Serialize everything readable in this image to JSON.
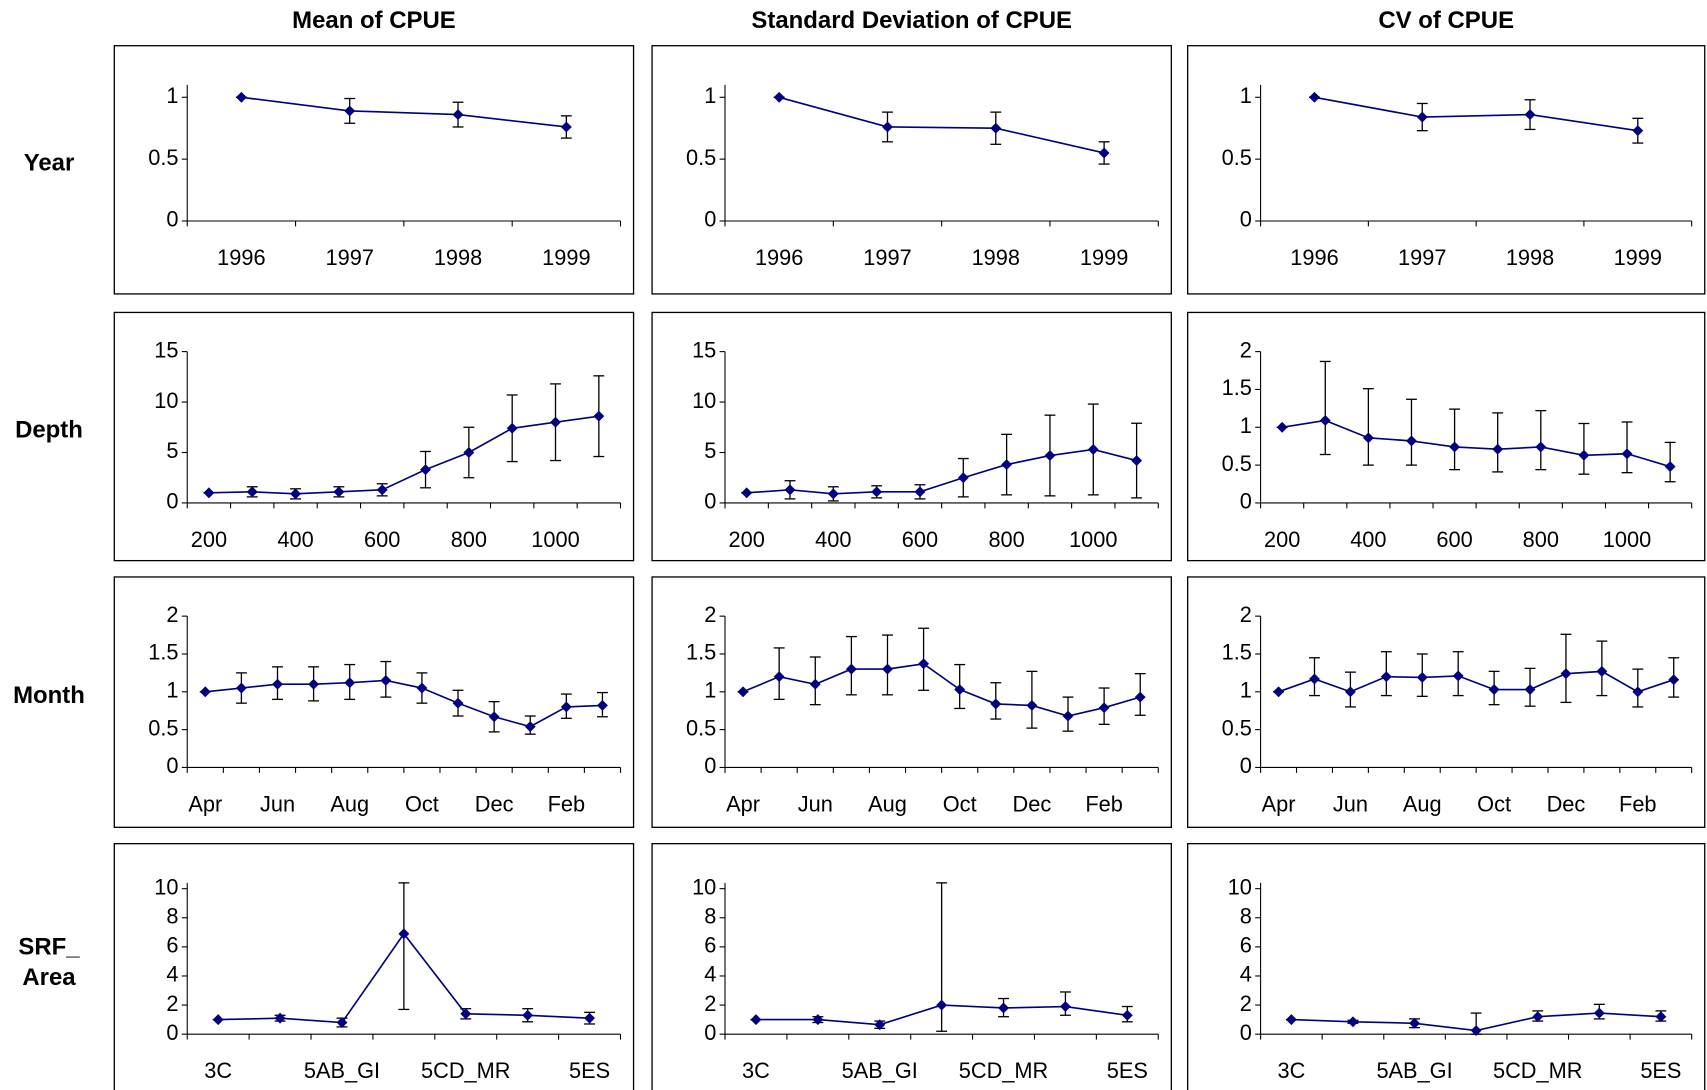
{
  "column_titles": [
    "Mean of CPUE",
    "Standard Deviation of CPUE",
    "CV of CPUE"
  ],
  "row_labels": [
    [
      "Year"
    ],
    [
      "Depth"
    ],
    [
      "Month"
    ],
    [
      "SRF_",
      "Area"
    ]
  ],
  "chart_data": [
    {
      "type": "line",
      "color": "#000080",
      "categories": [
        "1996",
        "1997",
        "1998",
        "1999"
      ],
      "values": [
        1,
        0.89,
        0.86,
        0.76
      ],
      "errors_minus": [
        0,
        0.1,
        0.1,
        0.09
      ],
      "errors_plus": [
        0,
        0.1,
        0.1,
        0.09
      ],
      "ylim": [
        0,
        1.1
      ],
      "yticks": [
        0,
        0.5,
        1
      ]
    },
    {
      "type": "line",
      "color": "#000080",
      "categories": [
        "1996",
        "1997",
        "1998",
        "1999"
      ],
      "values": [
        1,
        0.76,
        0.75,
        0.55
      ],
      "errors_minus": [
        0,
        0.12,
        0.13,
        0.09
      ],
      "errors_plus": [
        0,
        0.12,
        0.13,
        0.09
      ],
      "ylim": [
        0,
        1.1
      ],
      "yticks": [
        0,
        0.5,
        1
      ]
    },
    {
      "type": "line",
      "color": "#000080",
      "categories": [
        "1996",
        "1997",
        "1998",
        "1999"
      ],
      "values": [
        1,
        0.84,
        0.86,
        0.73
      ],
      "errors_minus": [
        0,
        0.11,
        0.12,
        0.1
      ],
      "errors_plus": [
        0,
        0.11,
        0.12,
        0.1
      ],
      "ylim": [
        0,
        1.1
      ],
      "yticks": [
        0,
        0.5,
        1
      ]
    },
    {
      "type": "line",
      "color": "#000080",
      "categories": [
        "200",
        null,
        "400",
        null,
        "600",
        null,
        "800",
        null,
        "1000",
        null
      ],
      "values": [
        1,
        1.1,
        0.9,
        1.1,
        1.3,
        3.3,
        5,
        7.4,
        8,
        8.6
      ],
      "errors_minus": [
        0,
        0.5,
        0.5,
        0.5,
        0.6,
        1.8,
        2.5,
        3.3,
        3.8,
        4
      ],
      "errors_plus": [
        0,
        0.5,
        0.5,
        0.5,
        0.6,
        1.8,
        2.5,
        3.3,
        3.8,
        4
      ],
      "ylim": [
        0,
        15
      ],
      "yticks": [
        0,
        5,
        10,
        15
      ]
    },
    {
      "type": "line",
      "color": "#000080",
      "categories": [
        "200",
        null,
        "400",
        null,
        "600",
        null,
        "800",
        null,
        "1000",
        null
      ],
      "values": [
        1,
        1.3,
        0.9,
        1.1,
        1.1,
        2.5,
        3.8,
        4.7,
        5.3,
        4.2
      ],
      "errors_minus": [
        0,
        0.9,
        0.7,
        0.6,
        0.7,
        1.9,
        3,
        4,
        4.5,
        3.7
      ],
      "errors_plus": [
        0,
        0.9,
        0.7,
        0.6,
        0.7,
        1.9,
        3,
        4,
        4.5,
        3.7
      ],
      "ylim": [
        0,
        15
      ],
      "yticks": [
        0,
        5,
        10,
        15
      ]
    },
    {
      "type": "line",
      "color": "#000080",
      "categories": [
        "200",
        null,
        "400",
        null,
        "600",
        null,
        "800",
        null,
        "1000",
        null
      ],
      "values": [
        1,
        1.09,
        0.86,
        0.82,
        0.74,
        0.71,
        0.74,
        0.63,
        0.65,
        0.48
      ],
      "errors_minus": [
        0,
        0.45,
        0.36,
        0.32,
        0.3,
        0.3,
        0.3,
        0.25,
        0.25,
        0.2
      ],
      "errors_plus": [
        0,
        0.78,
        0.65,
        0.55,
        0.5,
        0.48,
        0.48,
        0.42,
        0.42,
        0.32
      ],
      "ylim": [
        0,
        2
      ],
      "yticks": [
        0,
        0.5,
        1,
        1.5,
        2
      ]
    },
    {
      "type": "line",
      "color": "#000080",
      "categories": [
        "Apr",
        null,
        "Jun",
        null,
        "Aug",
        null,
        "Oct",
        null,
        "Dec",
        null,
        "Feb",
        null
      ],
      "values": [
        1,
        1.05,
        1.1,
        1.1,
        1.12,
        1.15,
        1.05,
        0.85,
        0.67,
        0.54,
        0.8,
        0.82
      ],
      "errors_minus": [
        0,
        0.2,
        0.2,
        0.22,
        0.22,
        0.22,
        0.2,
        0.17,
        0.2,
        0.1,
        0.15,
        0.15
      ],
      "errors_plus": [
        0,
        0.2,
        0.23,
        0.23,
        0.24,
        0.25,
        0.2,
        0.17,
        0.2,
        0.14,
        0.17,
        0.17
      ],
      "ylim": [
        0,
        2
      ],
      "yticks": [
        0,
        0.5,
        1,
        1.5,
        2
      ]
    },
    {
      "type": "line",
      "color": "#000080",
      "categories": [
        "Apr",
        null,
        "Jun",
        null,
        "Aug",
        null,
        "Oct",
        null,
        "Dec",
        null,
        "Feb",
        null
      ],
      "values": [
        1,
        1.2,
        1.1,
        1.3,
        1.3,
        1.37,
        1.03,
        0.84,
        0.82,
        0.68,
        0.79,
        0.93
      ],
      "errors_minus": [
        0,
        0.3,
        0.27,
        0.34,
        0.34,
        0.35,
        0.25,
        0.2,
        0.3,
        0.2,
        0.22,
        0.24
      ],
      "errors_plus": [
        0,
        0.38,
        0.36,
        0.43,
        0.45,
        0.47,
        0.33,
        0.28,
        0.45,
        0.25,
        0.26,
        0.31
      ],
      "ylim": [
        0,
        2
      ],
      "yticks": [
        0,
        0.5,
        1,
        1.5,
        2
      ]
    },
    {
      "type": "line",
      "color": "#000080",
      "categories": [
        "Apr",
        null,
        "Jun",
        null,
        "Aug",
        null,
        "Oct",
        null,
        "Dec",
        null,
        "Feb",
        null
      ],
      "values": [
        1,
        1.17,
        1,
        1.2,
        1.19,
        1.21,
        1.03,
        1.03,
        1.24,
        1.27,
        1,
        1.16
      ],
      "errors_minus": [
        0,
        0.22,
        0.2,
        0.25,
        0.25,
        0.26,
        0.2,
        0.22,
        0.38,
        0.32,
        0.2,
        0.23
      ],
      "errors_plus": [
        0,
        0.28,
        0.26,
        0.33,
        0.31,
        0.32,
        0.24,
        0.28,
        0.52,
        0.4,
        0.3,
        0.29
      ],
      "ylim": [
        0,
        2
      ],
      "yticks": [
        0,
        0.5,
        1,
        1.5,
        2
      ]
    },
    {
      "type": "line",
      "color": "#000080",
      "categories": [
        "3C",
        null,
        "5AB_GI",
        null,
        "5CD_MR",
        null,
        "5ES"
      ],
      "values": [
        1,
        1.1,
        0.8,
        6.9,
        1.4,
        1.3,
        1.1
      ],
      "errors_minus": [
        0,
        0.2,
        0.3,
        5.2,
        0.35,
        0.45,
        0.4
      ],
      "errors_plus": [
        0,
        0.2,
        0.3,
        3.5,
        0.35,
        0.45,
        0.4
      ],
      "ylim": [
        0,
        10.4
      ],
      "yticks": [
        0,
        2,
        4,
        6,
        8,
        10
      ]
    },
    {
      "type": "line",
      "color": "#000080",
      "categories": [
        "3C",
        null,
        "5AB_GI",
        null,
        "5CD_MR",
        null,
        "5ES"
      ],
      "values": [
        1,
        1,
        0.65,
        2,
        1.8,
        1.9,
        1.3
      ],
      "errors_minus": [
        0,
        0.2,
        0.25,
        1.8,
        0.6,
        0.6,
        0.45
      ],
      "errors_plus": [
        0,
        0.2,
        0.25,
        8.4,
        0.65,
        1,
        0.6
      ],
      "ylim": [
        0,
        10.4
      ],
      "yticks": [
        0,
        2,
        4,
        6,
        8,
        10
      ]
    },
    {
      "type": "line",
      "color": "#000080",
      "categories": [
        "3C",
        null,
        "5AB_GI",
        null,
        "5CD_MR",
        null,
        "5ES"
      ],
      "values": [
        1,
        0.85,
        0.75,
        0.25,
        1.2,
        1.45,
        1.2
      ],
      "errors_minus": [
        0,
        0.1,
        0.3,
        0.25,
        0.3,
        0.4,
        0.3
      ],
      "errors_plus": [
        0,
        0.1,
        0.3,
        1.2,
        0.4,
        0.6,
        0.4
      ],
      "ylim": [
        0,
        10.4
      ],
      "yticks": [
        0,
        2,
        4,
        6,
        8,
        10
      ]
    }
  ]
}
